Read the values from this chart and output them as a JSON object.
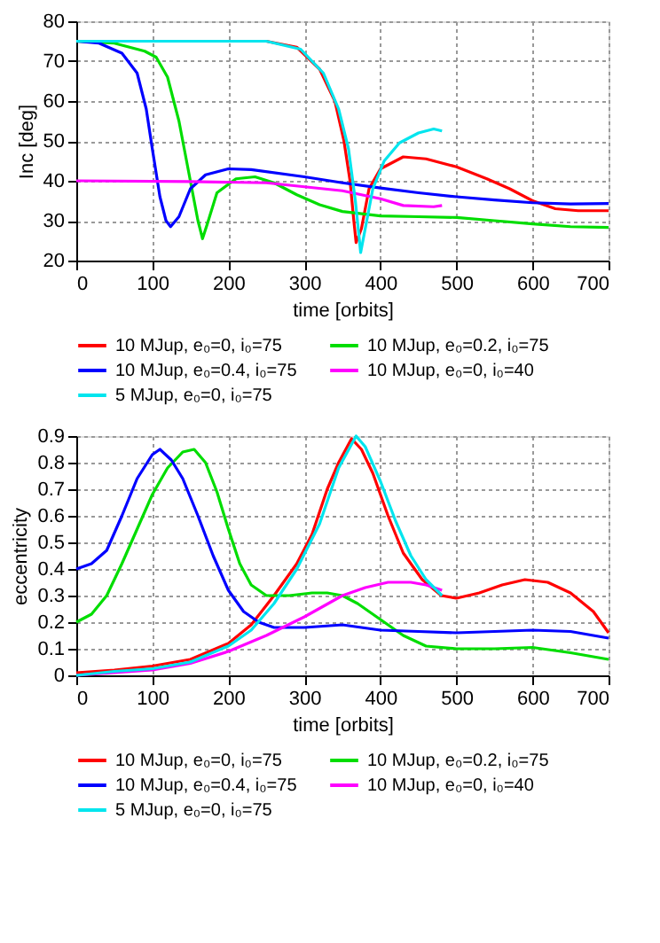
{
  "chart_data": [
    {
      "type": "line",
      "xlabel": "time [orbits]",
      "ylabel": "Inc [deg]",
      "xlim": [
        0,
        700
      ],
      "xticks": [
        0,
        100,
        200,
        300,
        400,
        500,
        600,
        700
      ],
      "ylim": [
        20,
        80
      ],
      "yticks": [
        20,
        30,
        40,
        50,
        60,
        70,
        80
      ],
      "grid": true,
      "legend": "bottom",
      "marker": "none",
      "series": [
        {
          "name": "10 MJup, e₀=0, i₀=75",
          "color": "#ff0000",
          "x": [
            0,
            250,
            290,
            320,
            340,
            352,
            360,
            365,
            368,
            375,
            385,
            400,
            430,
            460,
            500,
            540,
            570,
            600,
            630,
            660,
            700
          ],
          "values": [
            75,
            75,
            73.5,
            68,
            60,
            50,
            40,
            30,
            24.5,
            28,
            38,
            43,
            46,
            45.5,
            43.5,
            40.5,
            38,
            35,
            33,
            32.5,
            32.5
          ]
        },
        {
          "name": "10 MJup, e₀=0.2, i₀=75",
          "color": "#00dd00",
          "x": [
            0,
            50,
            90,
            105,
            120,
            135,
            150,
            160,
            166,
            172,
            185,
            210,
            235,
            260,
            290,
            320,
            350,
            400,
            450,
            500,
            550,
            600,
            650,
            700
          ],
          "values": [
            75,
            74.5,
            72.5,
            71,
            66,
            55,
            40,
            30,
            25.5,
            29,
            37,
            40.5,
            41,
            39.5,
            36.5,
            34,
            32.3,
            31.2,
            31,
            30.8,
            30,
            29.2,
            28.5,
            28.3
          ]
        },
        {
          "name": "10 MJup, e₀=0.4, i₀=75",
          "color": "#0000ff",
          "x": [
            0,
            30,
            60,
            80,
            92,
            100,
            110,
            118,
            124,
            135,
            150,
            170,
            200,
            230,
            300,
            350,
            400,
            450,
            500,
            550,
            600,
            650,
            700
          ],
          "values": [
            75,
            74.5,
            72,
            67,
            58,
            48,
            36,
            30,
            28.5,
            31,
            38,
            41.5,
            43,
            42.8,
            41,
            39.5,
            38.2,
            37,
            36,
            35.2,
            34.5,
            34.2,
            34.3
          ]
        },
        {
          "name": "10 MJup, e₀=0, i₀=40",
          "color": "#ff00ff",
          "x": [
            0,
            150,
            250,
            300,
            350,
            400,
            430,
            470,
            481
          ],
          "values": [
            40,
            39.8,
            39.5,
            38.5,
            37.5,
            35.5,
            33.8,
            33.5,
            33.8
          ]
        },
        {
          "name": "5 MJup, e₀=0, i₀=75",
          "color": "#00e5ee",
          "x": [
            0,
            250,
            295,
            325,
            345,
            358,
            367,
            374,
            380,
            390,
            405,
            425,
            450,
            470,
            481
          ],
          "values": [
            75,
            75,
            73,
            67,
            58,
            48,
            35,
            22,
            28,
            38,
            45,
            49.5,
            52,
            53,
            52.5
          ]
        }
      ]
    },
    {
      "type": "line",
      "xlabel": "time [orbits]",
      "ylabel": "eccentricity",
      "xlim": [
        0,
        700
      ],
      "xticks": [
        0,
        100,
        200,
        300,
        400,
        500,
        600,
        700
      ],
      "ylim": [
        0,
        0.9
      ],
      "yticks": [
        0,
        0.1,
        0.2,
        0.3,
        0.4,
        0.5,
        0.6,
        0.7,
        0.8,
        0.9
      ],
      "grid": true,
      "legend": "bottom",
      "marker": "none",
      "series": [
        {
          "name": "10 MJup, e₀=0, i₀=75",
          "color": "#ff0000",
          "x": [
            0,
            50,
            100,
            150,
            200,
            230,
            260,
            290,
            310,
            330,
            345,
            362,
            375,
            390,
            410,
            430,
            455,
            480,
            500,
            530,
            560,
            590,
            620,
            650,
            680,
            700
          ],
          "values": [
            0.01,
            0.02,
            0.035,
            0.06,
            0.12,
            0.19,
            0.3,
            0.42,
            0.53,
            0.7,
            0.8,
            0.89,
            0.85,
            0.76,
            0.6,
            0.46,
            0.36,
            0.3,
            0.29,
            0.31,
            0.34,
            0.36,
            0.35,
            0.31,
            0.24,
            0.16
          ]
        },
        {
          "name": "10 MJup, e₀=0.2, i₀=75",
          "color": "#00dd00",
          "x": [
            0,
            20,
            40,
            60,
            80,
            100,
            120,
            140,
            155,
            170,
            185,
            200,
            215,
            230,
            250,
            280,
            310,
            330,
            350,
            370,
            400,
            430,
            460,
            500,
            550,
            600,
            650,
            700
          ],
          "values": [
            0.2,
            0.23,
            0.3,
            0.42,
            0.55,
            0.68,
            0.78,
            0.84,
            0.85,
            0.8,
            0.69,
            0.55,
            0.42,
            0.34,
            0.3,
            0.3,
            0.31,
            0.31,
            0.3,
            0.27,
            0.21,
            0.15,
            0.11,
            0.1,
            0.1,
            0.105,
            0.085,
            0.06
          ]
        },
        {
          "name": "10 MJup, e₀=0.4, i₀=75",
          "color": "#0000ff",
          "x": [
            0,
            20,
            40,
            60,
            80,
            100,
            110,
            125,
            140,
            160,
            180,
            200,
            220,
            240,
            260,
            300,
            350,
            400,
            450,
            500,
            550,
            600,
            650,
            700
          ],
          "values": [
            0.4,
            0.42,
            0.47,
            0.6,
            0.74,
            0.83,
            0.85,
            0.81,
            0.74,
            0.6,
            0.45,
            0.32,
            0.24,
            0.2,
            0.18,
            0.18,
            0.19,
            0.17,
            0.165,
            0.16,
            0.165,
            0.17,
            0.165,
            0.14
          ]
        },
        {
          "name": "10 MJup, e₀=0, i₀=40",
          "color": "#ff00ff",
          "x": [
            0,
            100,
            150,
            200,
            250,
            300,
            350,
            380,
            410,
            440,
            460,
            481
          ],
          "values": [
            0.0,
            0.02,
            0.045,
            0.09,
            0.15,
            0.22,
            0.3,
            0.33,
            0.35,
            0.35,
            0.34,
            0.32
          ]
        },
        {
          "name": "5 MJup, e₀=0, i₀=75",
          "color": "#00e5ee",
          "x": [
            0,
            50,
            100,
            150,
            200,
            230,
            260,
            290,
            320,
            345,
            368,
            380,
            400,
            420,
            440,
            460,
            481
          ],
          "values": [
            0.0,
            0.015,
            0.025,
            0.05,
            0.11,
            0.17,
            0.27,
            0.4,
            0.57,
            0.78,
            0.9,
            0.86,
            0.73,
            0.58,
            0.45,
            0.36,
            0.3
          ]
        }
      ]
    }
  ]
}
